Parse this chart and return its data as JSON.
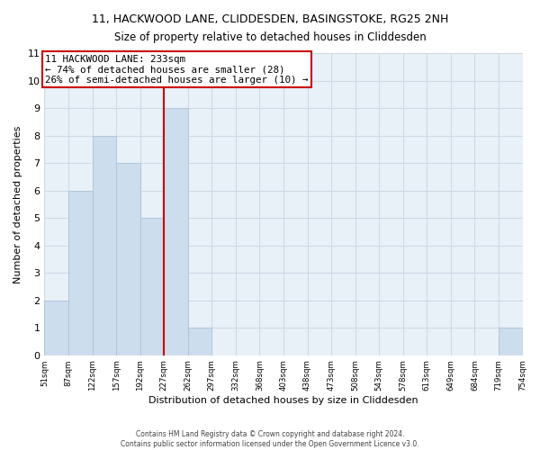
{
  "title": "11, HACKWOOD LANE, CLIDDESDEN, BASINGSTOKE, RG25 2NH",
  "subtitle": "Size of property relative to detached houses in Cliddesden",
  "xlabel": "Distribution of detached houses by size in Cliddesden",
  "ylabel": "Number of detached properties",
  "bin_edges": [
    0,
    1,
    2,
    3,
    4,
    5,
    6,
    7,
    8,
    9,
    10,
    11,
    12,
    13,
    14,
    15,
    16,
    17,
    18,
    19,
    20
  ],
  "bar_heights": [
    2,
    6,
    8,
    7,
    5,
    9,
    1,
    0,
    0,
    0,
    0,
    0,
    0,
    0,
    0,
    0,
    0,
    0,
    0,
    1
  ],
  "bar_color": "#ccdded",
  "bar_edgecolor": "#aac4d8",
  "property_line_x": 5.0,
  "property_line_color": "#cc0000",
  "annotation_text": "11 HACKWOOD LANE: 233sqm\n← 74% of detached houses are smaller (28)\n26% of semi-detached houses are larger (10) →",
  "annotation_box_edgecolor": "#cc0000",
  "annotation_box_facecolor": "white",
  "ylim": [
    0,
    11
  ],
  "yticks": [
    0,
    1,
    2,
    3,
    4,
    5,
    6,
    7,
    8,
    9,
    10,
    11
  ],
  "tick_labels": [
    "51sqm",
    "87sqm",
    "122sqm",
    "157sqm",
    "192sqm",
    "227sqm",
    "262sqm",
    "297sqm",
    "332sqm",
    "368sqm",
    "403sqm",
    "438sqm",
    "473sqm",
    "508sqm",
    "543sqm",
    "578sqm",
    "613sqm",
    "649sqm",
    "684sqm",
    "719sqm",
    "754sqm"
  ],
  "footer_line1": "Contains HM Land Registry data © Crown copyright and database right 2024.",
  "footer_line2": "Contains public sector information licensed under the Open Government Licence v3.0.",
  "grid_color": "#ccd8e4",
  "background_color": "#e8f0f8"
}
